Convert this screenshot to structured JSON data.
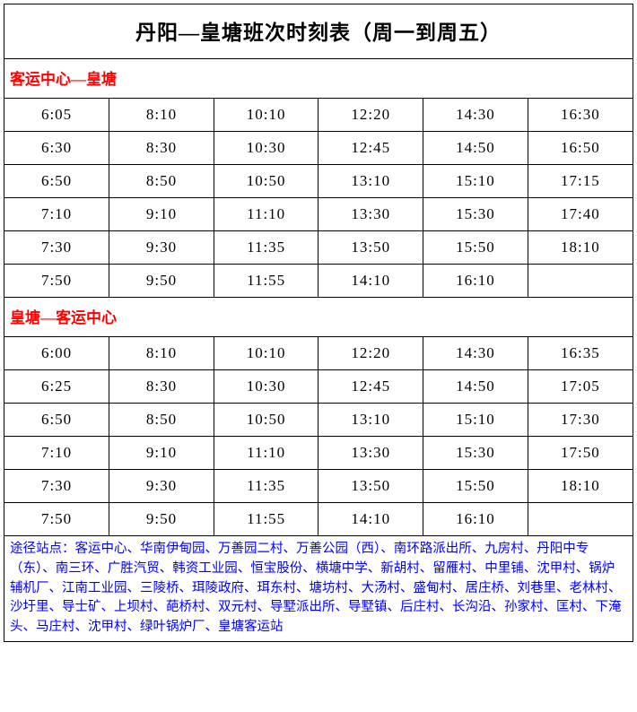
{
  "title": "丹阳—皇塘班次时刻表（周一到周五）",
  "section1": {
    "header": "客运中心—皇塘",
    "rows": [
      [
        "6:05",
        "8:10",
        "10:10",
        "12:20",
        "14:30",
        "16:30"
      ],
      [
        "6:30",
        "8:30",
        "10:30",
        "12:45",
        "14:50",
        "16:50"
      ],
      [
        "6:50",
        "8:50",
        "10:50",
        "13:10",
        "15:10",
        "17:15"
      ],
      [
        "7:10",
        "9:10",
        "11:10",
        "13:30",
        "15:30",
        "17:40"
      ],
      [
        "7:30",
        "9:30",
        "11:35",
        "13:50",
        "15:50",
        "18:10"
      ],
      [
        "7:50",
        "9:50",
        "11:55",
        "14:10",
        "16:10",
        ""
      ]
    ]
  },
  "section2": {
    "header": "皇塘—客运中心",
    "rows": [
      [
        "6:00",
        "8:10",
        "10:10",
        "12:20",
        "14:30",
        "16:35"
      ],
      [
        "6:25",
        "8:30",
        "10:30",
        "12:45",
        "14:50",
        "17:05"
      ],
      [
        "6:50",
        "8:50",
        "10:50",
        "13:10",
        "15:10",
        "17:30"
      ],
      [
        "7:10",
        "9:10",
        "11:10",
        "13:30",
        "15:30",
        "17:50"
      ],
      [
        "7:30",
        "9:30",
        "11:35",
        "13:50",
        "15:50",
        "18:10"
      ],
      [
        "7:50",
        "9:50",
        "11:55",
        "14:10",
        "16:10",
        ""
      ]
    ]
  },
  "stations_text": "途径站点：客运中心、华南伊甸园、万善园二村、万善公园（西）、南环路派出所、九房村、丹阳中专（东）、南三环、广胜汽贸、韩资工业园、恒宝股份、横塘中学、新胡村、留雁村、中里铺、沈甲村、锅炉辅机厂、江南工业园、三陵桥、珥陵政府、珥东村、塘坊村、大汤村、盛甸村、居庄桥、刘巷里、老林村、沙圩里、导士矿、上坝村、葩桥村、双元村、导墅派出所、导墅镇、后庄村、长沟沿、孙家村、匡村、下淹头、马庄村、沈甲村、绿叶锅炉厂、皇塘客运站",
  "colors": {
    "header_red": "#ff0000",
    "stations_blue": "#0000ff",
    "border": "#000000",
    "background": "#ffffff"
  }
}
